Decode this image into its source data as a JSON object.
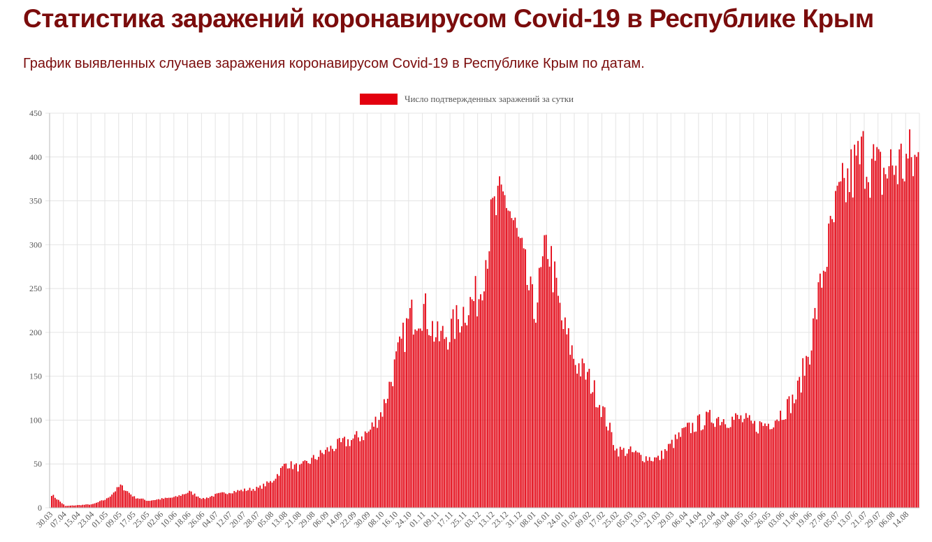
{
  "page": {
    "title": "Статистика заражений коронавирусом Covid-19 в Республике Крым",
    "subtitle": "График выявленных случаев заражения коронавирусом Covid-19 в Республике Крым по датам."
  },
  "colors": {
    "bar": "#e3000f",
    "title": "#7b0c0c",
    "grid": "#e4e4e4",
    "axis": "#bbbbbb",
    "text": "#555555"
  },
  "chart_data": {
    "type": "bar",
    "title": "",
    "xlabel": "",
    "ylabel": "",
    "ylim": [
      0,
      450
    ],
    "grid": true,
    "legend_position": "top-center",
    "legend": "Число подтвержденных заражений за сутки",
    "y_ticks": [
      "0",
      "50",
      "100",
      "150",
      "200",
      "250",
      "300",
      "350",
      "400",
      "450"
    ],
    "series": [
      {
        "name": "Число подтвержденных заражений за сутки",
        "anchors": [
          [
            "30.03",
            15
          ],
          [
            "07.04",
            2
          ],
          [
            "15.04",
            3
          ],
          [
            "23.04",
            4
          ],
          [
            "01.05",
            10
          ],
          [
            "09.05",
            25
          ],
          [
            "17.05",
            12
          ],
          [
            "25.05",
            8
          ],
          [
            "02.06",
            10
          ],
          [
            "10.06",
            12
          ],
          [
            "18.06",
            18
          ],
          [
            "26.06",
            10
          ],
          [
            "04.07",
            15
          ],
          [
            "12.07",
            18
          ],
          [
            "20.07",
            20
          ],
          [
            "28.07",
            22
          ],
          [
            "05.08",
            30
          ],
          [
            "13.08",
            50
          ],
          [
            "21.08",
            45
          ],
          [
            "29.08",
            55
          ],
          [
            "06.09",
            65
          ],
          [
            "14.09",
            72
          ],
          [
            "22.09",
            78
          ],
          [
            "30.09",
            85
          ],
          [
            "08.10",
            110
          ],
          [
            "16.10",
            165
          ],
          [
            "24.10",
            215
          ],
          [
            "01.11",
            225
          ],
          [
            "09.11",
            190
          ],
          [
            "17.11",
            200
          ],
          [
            "25.11",
            225
          ],
          [
            "03.12",
            240
          ],
          [
            "13.12",
            330
          ],
          [
            "23.12",
            350
          ],
          [
            "31.12",
            290
          ],
          [
            "08.01",
            220
          ],
          [
            "16.01",
            300
          ],
          [
            "24.01",
            210
          ],
          [
            "01.02",
            165
          ],
          [
            "09.02",
            145
          ],
          [
            "17.02",
            110
          ],
          [
            "25.02",
            65
          ],
          [
            "05.03",
            63
          ],
          [
            "13.03",
            57
          ],
          [
            "21.03",
            55
          ],
          [
            "29.03",
            72
          ],
          [
            "06.04",
            87
          ],
          [
            "14.04",
            96
          ],
          [
            "22.04",
            102
          ],
          [
            "30.04",
            100
          ],
          [
            "08.05",
            100
          ],
          [
            "18.05",
            92
          ],
          [
            "26.05",
            95
          ],
          [
            "03.06",
            108
          ],
          [
            "11.06",
            125
          ],
          [
            "19.06",
            180
          ],
          [
            "27.06",
            270
          ],
          [
            "05.07",
            340
          ],
          [
            "13.07",
            375
          ],
          [
            "21.07",
            400
          ],
          [
            "29.07",
            375
          ],
          [
            "06.08",
            385
          ],
          [
            "14.08",
            390
          ]
        ]
      }
    ]
  }
}
